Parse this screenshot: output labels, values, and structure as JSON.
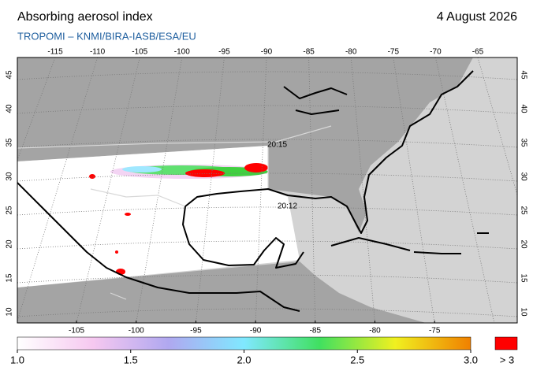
{
  "header": {
    "title": "Absorbing aerosol index",
    "date": "4 August 2026",
    "subtitle": "TROPOMI  –  KNMI/BIRA-IASB/ESA/EU"
  },
  "map": {
    "top_longitudes": [
      -115,
      -110,
      -105,
      -100,
      -95,
      -90,
      -85,
      -80,
      -75,
      -70,
      -65
    ],
    "bottom_longitudes": [
      -105,
      -100,
      -95,
      -90,
      -85,
      -80,
      -75
    ],
    "latitudes": [
      45,
      40,
      35,
      30,
      25,
      20,
      15,
      10
    ],
    "orbit_times": [
      "20:15",
      "20:12"
    ]
  },
  "colorbar": {
    "ticks": [
      {
        "value": 1,
        "label": "1.0"
      },
      {
        "value": 1.5,
        "label": "1.5"
      },
      {
        "value": 2,
        "label": "2.0"
      },
      {
        "value": 2.5,
        "label": "2.5"
      },
      {
        "value": 3,
        "label": "3.0"
      }
    ],
    "range": [
      1,
      3
    ],
    "over_label": "> 3",
    "colors": [
      "#ffffff",
      "#f6c8f0",
      "#b0a8f0",
      "#80e8ff",
      "#40e060",
      "#f0f020",
      "#f08000"
    ],
    "over_color": "#ff0000"
  }
}
